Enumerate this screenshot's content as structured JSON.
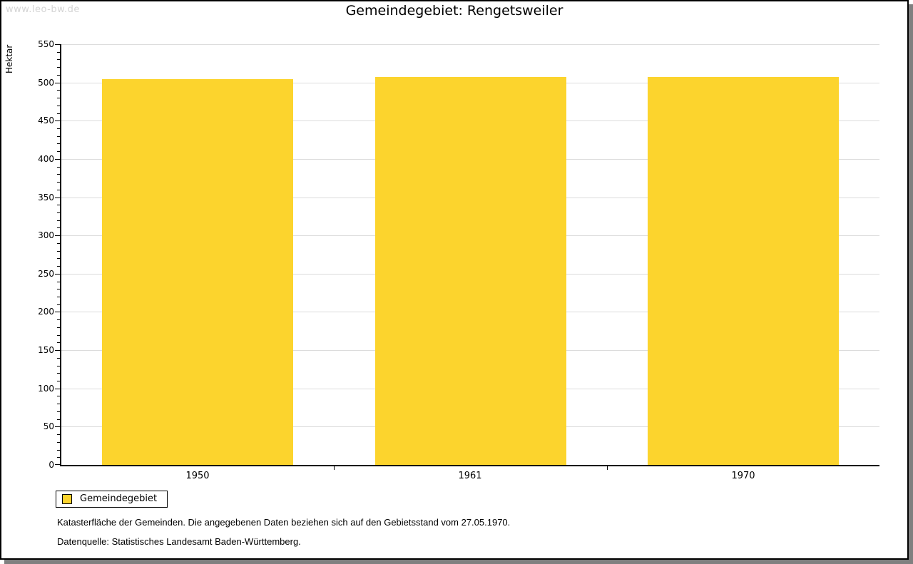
{
  "watermark": "www.leo-bw.de",
  "title": "Gemeindegebiet: Rengetsweiler",
  "chart_data": {
    "type": "bar",
    "title": "Gemeindegebiet: Rengetsweiler",
    "categories": [
      "1950",
      "1961",
      "1970"
    ],
    "series": [
      {
        "name": "Gemeindegebiet",
        "values": [
          504,
          507,
          507
        ]
      }
    ],
    "xlabel": "",
    "ylabel": "Hektar",
    "ylim": [
      0,
      550
    ],
    "ytick_major": 50,
    "ytick_minor": 10,
    "grid": true,
    "legend_position": "bottom-left",
    "bar_color": "#FCD42D",
    "grid_color": "#DCDCDC",
    "axis_color": "#000000"
  },
  "legend": {
    "items": [
      {
        "label": "Gemeindegebiet",
        "color": "#FCD42D"
      }
    ]
  },
  "footnotes": [
    "Katasterfläche der Gemeinden. Die angegebenen Daten beziehen sich auf den Gebietsstand vom 27.05.1970.",
    "Datenquelle: Statistisches Landesamt Baden-Württemberg."
  ],
  "colors": {
    "watermark": "#D4D4D4",
    "shadow": "#808080",
    "background": "#FFFFFF"
  }
}
